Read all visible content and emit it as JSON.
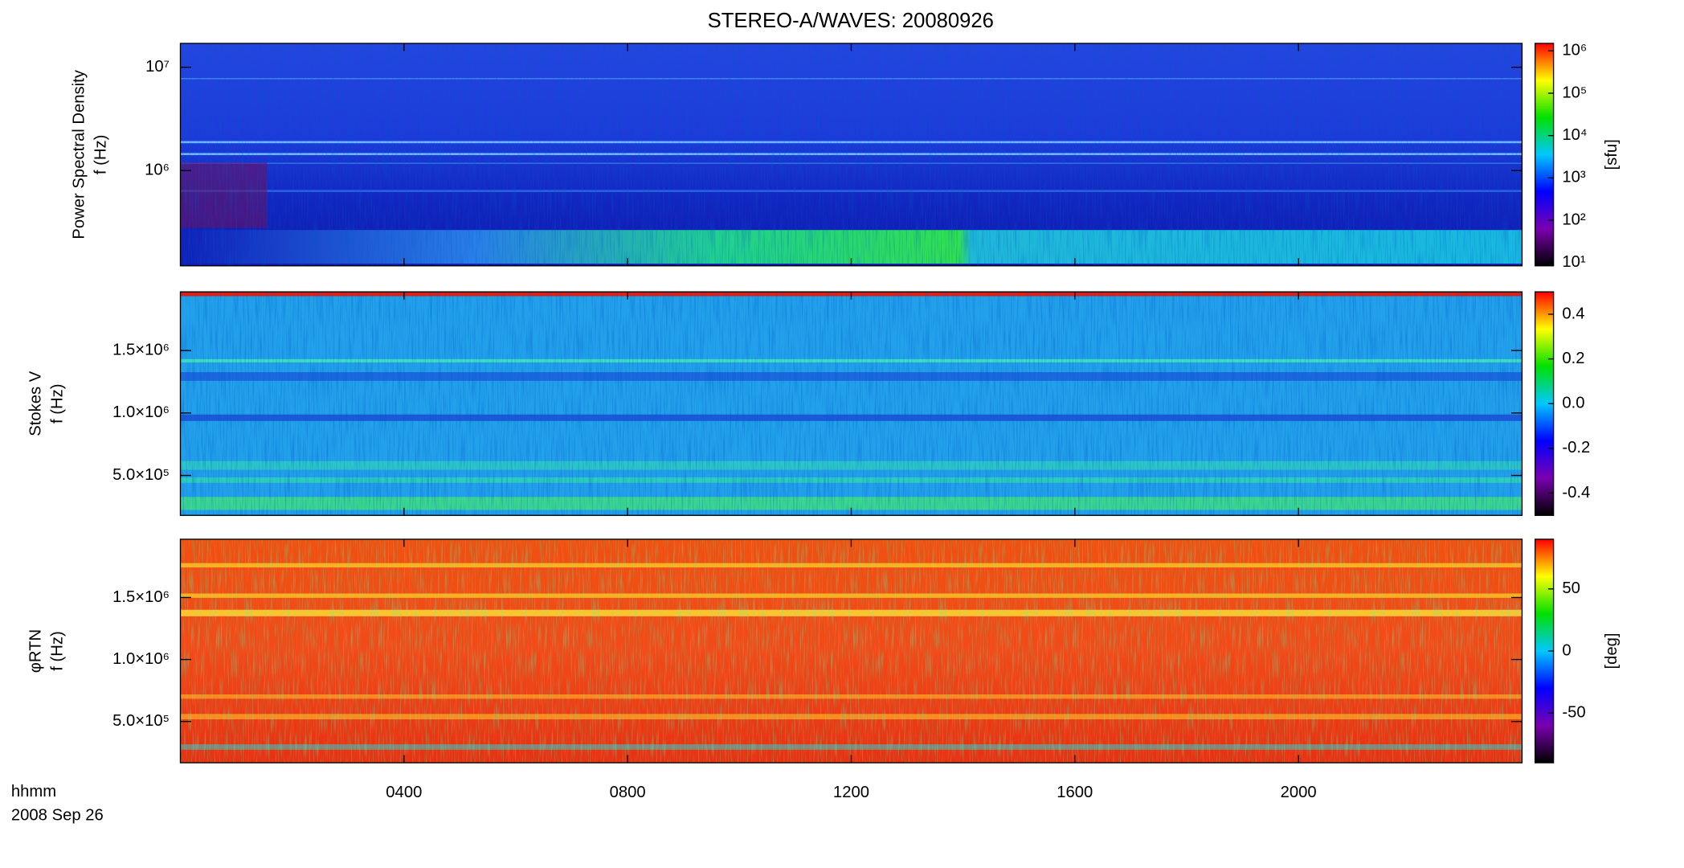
{
  "title": "STEREO-A/WAVES: 20080926",
  "xlabel": "hhmm",
  "date": "2008 Sep 26",
  "xlim": [
    0,
    24
  ],
  "xticks": [
    {
      "value": 4,
      "label": "0400"
    },
    {
      "value": 8,
      "label": "0800"
    },
    {
      "value": 12,
      "label": "1200"
    },
    {
      "value": 16,
      "label": "1600"
    },
    {
      "value": 20,
      "label": "2000"
    }
  ],
  "chart_data": [
    {
      "type": "spectrogram",
      "ylabel": [
        "Power Spectral Density",
        "f (Hz)"
      ],
      "yscale": "log",
      "ylim": [
        120000,
        17000000
      ],
      "yticks": [
        {
          "value": 1000000,
          "label": "10⁶"
        },
        {
          "value": 10000000,
          "label": "10⁷"
        }
      ],
      "zscale": "log",
      "zlim": [
        8.4,
        1500000
      ],
      "zticks": [
        {
          "value": 10,
          "label": "10¹"
        },
        {
          "value": 100,
          "label": "10²"
        },
        {
          "value": 1000,
          "label": "10³"
        },
        {
          "value": 10000,
          "label": "10⁴"
        },
        {
          "value": 100000,
          "label": "10⁵"
        },
        {
          "value": 1000000,
          "label": "10⁶"
        }
      ],
      "zlabel": "[sfu]",
      "colors": [
        "#000000",
        "#7a00b0",
        "#0000ff",
        "#00c8ff",
        "#00e000",
        "#ffff00",
        "#ff0000"
      ]
    },
    {
      "type": "spectrogram",
      "ylabel": [
        "Stokes V",
        "f (Hz)"
      ],
      "yscale": "linear",
      "ylim": [
        180000,
        1970000
      ],
      "yticks": [
        {
          "value": 500000,
          "label": "5.0×10⁵"
        },
        {
          "value": 1000000,
          "label": "1.0×10⁶"
        },
        {
          "value": 1500000,
          "label": "1.5×10⁶"
        }
      ],
      "zscale": "linear",
      "zlim": [
        -0.5,
        0.5
      ],
      "zticks": [
        -0.4,
        -0.2,
        {
          "value": 0,
          "label": "0.0"
        },
        0.2,
        0.4
      ],
      "colors": [
        "#000000",
        "#7a00b0",
        "#0000ff",
        "#00c8ff",
        "#00e000",
        "#ffff00",
        "#ff0000"
      ]
    },
    {
      "type": "spectrogram",
      "ylabel": [
        "φRTN",
        "f (Hz)"
      ],
      "yscale": "linear",
      "ylim": [
        167000,
        1970000
      ],
      "yticks": [
        {
          "value": 500000,
          "label": "5.0×10⁵"
        },
        {
          "value": 1000000,
          "label": "1.0×10⁶"
        },
        {
          "value": 1500000,
          "label": "1.5×10⁶"
        }
      ],
      "zscale": "linear",
      "zlim": [
        -90,
        90
      ],
      "zticks": [
        -50,
        0,
        50
      ],
      "zlabel": "[deg]",
      "colors": [
        "#000000",
        "#7a00b0",
        "#0000ff",
        "#00c8ff",
        "#00e000",
        "#ffff00",
        "#ff0000"
      ]
    }
  ]
}
